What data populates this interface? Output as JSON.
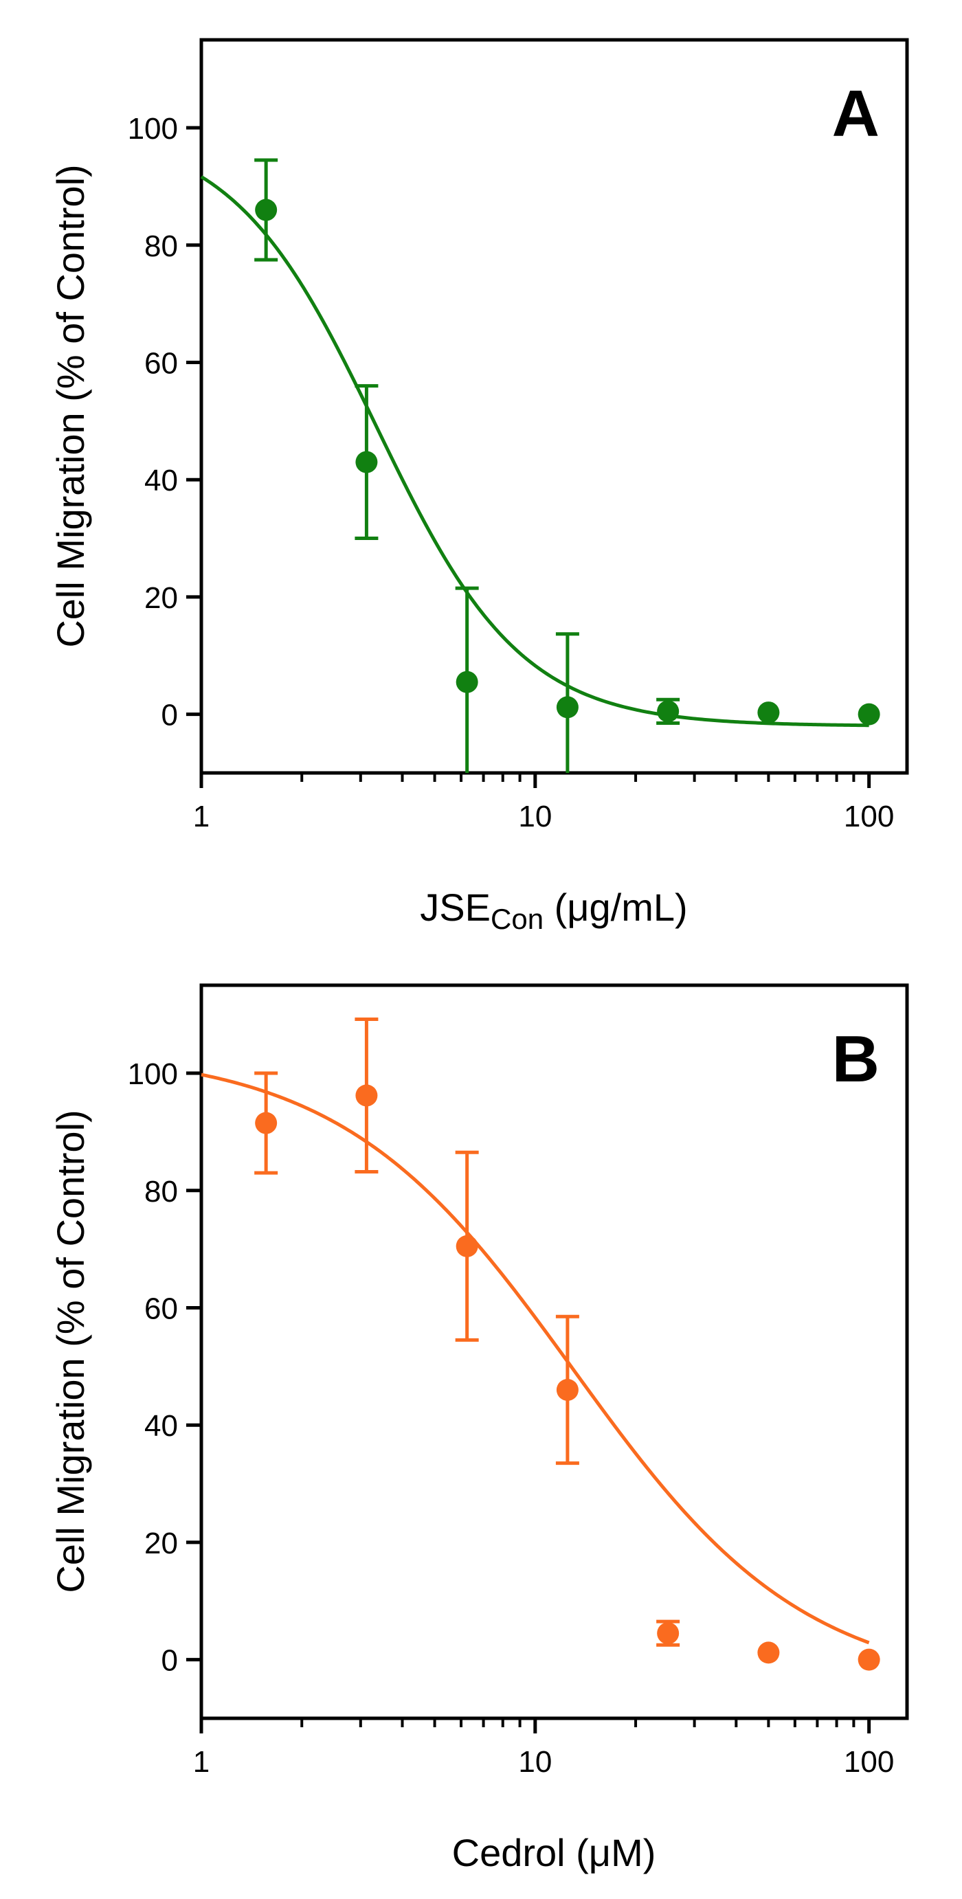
{
  "chart_data": [
    {
      "type": "scatter",
      "panel": "A",
      "color": "#118011",
      "xscale": "log",
      "xlim": [
        1,
        130
      ],
      "ylim": [
        -10,
        115
      ],
      "xticks": [
        1,
        10,
        100
      ],
      "xtick_labels": [
        "1",
        "10",
        "100"
      ],
      "yticks": [
        0,
        20,
        40,
        60,
        80,
        100
      ],
      "ytick_labels": [
        "0",
        "20",
        "40",
        "60",
        "80",
        "100"
      ],
      "ylabel": "Cell Migration (% of Control)",
      "xlabel_main": "JSE",
      "xlabel_sub": "Con",
      "xlabel_unit": " (μg/mL)",
      "points": [
        {
          "x": 1.5625,
          "y": 86,
          "err": 8.5
        },
        {
          "x": 3.125,
          "y": 43,
          "err": 13
        },
        {
          "x": 6.25,
          "y": 5.5,
          "err": 16
        },
        {
          "x": 12.5,
          "y": 1.2,
          "err": 12.5
        },
        {
          "x": 25,
          "y": 0.5,
          "err": 2
        },
        {
          "x": 50,
          "y": 0.3,
          "err": 0
        },
        {
          "x": 100,
          "y": 0,
          "err": 0
        }
      ],
      "fit": {
        "top": 100,
        "bottom": -2,
        "ic50": 3.35,
        "hill": 2.0,
        "x_range": [
          1,
          100
        ]
      }
    },
    {
      "type": "scatter",
      "panel": "B",
      "color": "#fa6b1f",
      "xscale": "log",
      "xlim": [
        1,
        130
      ],
      "ylim": [
        -10,
        115
      ],
      "xticks": [
        1,
        10,
        100
      ],
      "xtick_labels": [
        "1",
        "10",
        "100"
      ],
      "yticks": [
        0,
        20,
        40,
        60,
        80,
        100
      ],
      "ytick_labels": [
        "0",
        "20",
        "40",
        "60",
        "80",
        "100"
      ],
      "ylabel": "Cell Migration (% of Control)",
      "xlabel_main": "Cedrol (μM)",
      "xlabel_sub": "",
      "xlabel_unit": "",
      "points": [
        {
          "x": 1.5625,
          "y": 91.5,
          "err": 8.5
        },
        {
          "x": 3.125,
          "y": 96.2,
          "err": 13
        },
        {
          "x": 6.25,
          "y": 70.5,
          "err": 16
        },
        {
          "x": 12.5,
          "y": 46,
          "err": 12.5
        },
        {
          "x": 25,
          "y": 4.5,
          "err": 2
        },
        {
          "x": 50,
          "y": 1.2,
          "err": 0
        },
        {
          "x": 100,
          "y": 0,
          "err": 0
        }
      ],
      "fit": {
        "top": 104,
        "bottom": -5,
        "ic50": 13.0,
        "hill": 1.25,
        "x_range": [
          1,
          100
        ]
      }
    }
  ]
}
